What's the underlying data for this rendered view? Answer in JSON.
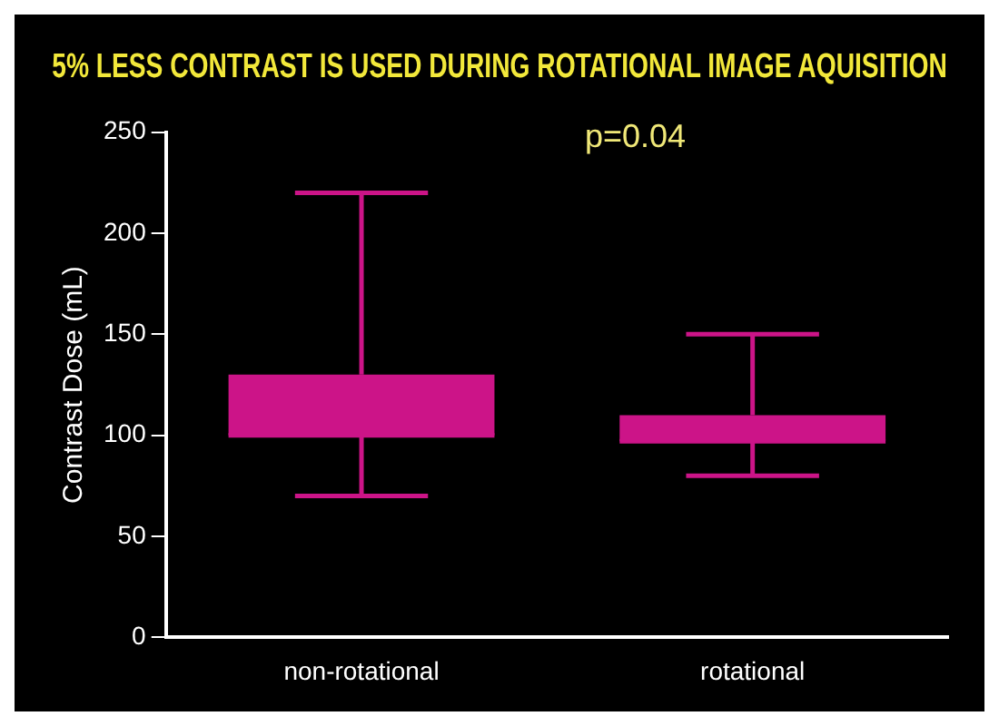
{
  "chart_data": {
    "type": "box",
    "title": "5% LESS CONTRAST IS USED DURING ROTATIONAL IMAGE AQUISITION",
    "ylabel": "Contrast Dose (mL)",
    "categories": [
      "non-rotational",
      "rotational"
    ],
    "series": [
      {
        "color": "#cc1488",
        "boxes": [
          {
            "low": 70,
            "q1": 100,
            "median": 100,
            "q3": 130,
            "high": 220
          },
          {
            "low": 80,
            "q1": 97,
            "median": 97,
            "q3": 110,
            "high": 150
          }
        ]
      }
    ],
    "ylim": [
      0,
      250
    ],
    "yticks": [
      0,
      50,
      100,
      150,
      200,
      250
    ],
    "grid": false,
    "legend": false,
    "annotations": [
      "p=0.04"
    ]
  }
}
